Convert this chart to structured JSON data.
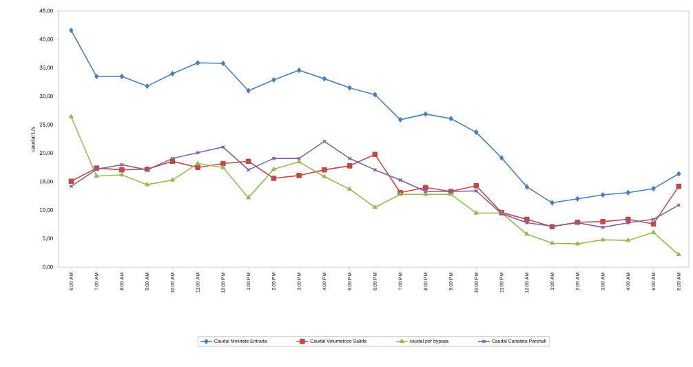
{
  "chart_data": {
    "type": "line",
    "ylabel": "caudal L/s",
    "categories": [
      "6:00 AM",
      "7:00 AM",
      "8:00 AM",
      "9:00 AM",
      "10:00 AM",
      "11:00 AM",
      "12:00 PM",
      "1:00 PM",
      "2:00 PM",
      "3:00 PM",
      "4:00 PM",
      "5:00 PM",
      "6:00 PM",
      "7:00 PM",
      "8:00 PM",
      "9:00 PM",
      "10:00 PM",
      "11:00 PM",
      "12:00 AM",
      "1:00 AM",
      "2:00 AM",
      "3:00 AM",
      "4:00 AM",
      "5:00 AM",
      "6:00 AM"
    ],
    "series": [
      {
        "name": "Caudal Molinete Entrada",
        "color": "#4a7ebb",
        "marker": "diamond",
        "values": [
          41.6,
          33.5,
          33.5,
          31.8,
          34.0,
          35.9,
          35.8,
          31.0,
          32.9,
          34.6,
          33.1,
          31.5,
          30.3,
          25.9,
          26.9,
          26.1,
          23.7,
          19.2,
          14.1,
          11.3,
          12.0,
          12.7,
          13.1,
          13.8,
          16.4
        ]
      },
      {
        "name": "Caudal Volumetrico Salida",
        "color": "#be4b48",
        "marker": "square",
        "values": [
          15.1,
          17.4,
          17.1,
          17.2,
          18.6,
          17.5,
          18.2,
          18.6,
          15.6,
          16.1,
          17.1,
          17.8,
          19.8,
          13.1,
          14.0,
          13.3,
          14.3,
          9.6,
          8.4,
          7.1,
          7.9,
          8.0,
          8.4,
          7.6,
          14.2
        ]
      },
      {
        "name": "caudal por bypass",
        "color": "#98b954",
        "marker": "triangle",
        "values": [
          26.4,
          16.0,
          16.2,
          14.5,
          15.3,
          18.2,
          17.5,
          12.2,
          17.2,
          18.5,
          15.9,
          13.7,
          10.5,
          12.8,
          12.8,
          12.8,
          9.5,
          9.5,
          5.8,
          4.2,
          4.1,
          4.8,
          4.7,
          6.1,
          2.2
        ]
      },
      {
        "name": "Caudal Canaleta Parshall",
        "color": "#7d60a0",
        "marker": "cross",
        "values": [
          14.2,
          17.2,
          18.0,
          17.1,
          19.1,
          20.1,
          21.1,
          17.1,
          19.1,
          19.1,
          22.1,
          19.1,
          17.1,
          15.3,
          13.3,
          13.3,
          13.4,
          9.4,
          7.8,
          7.2,
          7.8,
          7.0,
          7.8,
          8.4,
          10.9
        ]
      }
    ],
    "ylim": [
      0,
      45
    ],
    "yticks": [
      {
        "value": 0,
        "label": "0,00"
      },
      {
        "value": 5,
        "label": "5,00"
      },
      {
        "value": 10,
        "label": "10,00"
      },
      {
        "value": 15,
        "label": "15,00"
      },
      {
        "value": 20,
        "label": "20,00"
      },
      {
        "value": 25,
        "label": "25,00"
      },
      {
        "value": 30,
        "label": "30,00"
      },
      {
        "value": 35,
        "label": "35,00"
      },
      {
        "value": 40,
        "label": "40,00"
      },
      {
        "value": 45,
        "label": "45,00"
      }
    ],
    "grid": false,
    "legend": "bottom"
  }
}
